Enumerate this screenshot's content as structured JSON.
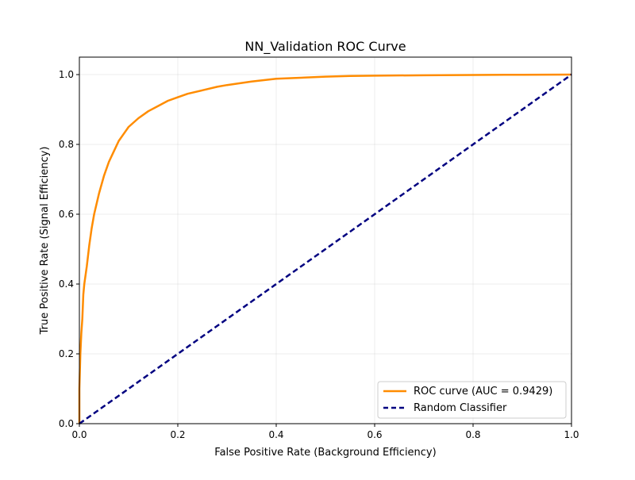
{
  "chart_data": {
    "type": "line",
    "title": "NN_Validation ROC Curve",
    "xlabel": "False Positive Rate (Background Efficiency)",
    "ylabel": "True Positive Rate (Signal Efficiency)",
    "xlim": [
      0.0,
      1.0
    ],
    "ylim": [
      0.0,
      1.05
    ],
    "grid": true,
    "legend_position": "bottom-right",
    "x_ticks": [
      "0.0",
      "0.2",
      "0.4",
      "0.6",
      "0.8",
      "1.0"
    ],
    "y_ticks": [
      "0.0",
      "0.2",
      "0.4",
      "0.6",
      "0.8",
      "1.0"
    ],
    "series": [
      {
        "name": "ROC curve (AUC = 0.9429)",
        "color": "#ff8c00",
        "style": "solid",
        "x": [
          0.0,
          0.0,
          0.002,
          0.004,
          0.006,
          0.008,
          0.01,
          0.015,
          0.02,
          0.025,
          0.03,
          0.04,
          0.05,
          0.06,
          0.07,
          0.08,
          0.09,
          0.1,
          0.12,
          0.14,
          0.16,
          0.18,
          0.2,
          0.22,
          0.25,
          0.28,
          0.3,
          0.35,
          0.4,
          0.45,
          0.5,
          0.55,
          0.6,
          0.7,
          0.8,
          0.9,
          1.0
        ],
        "y": [
          0.0,
          0.1,
          0.2,
          0.26,
          0.3,
          0.37,
          0.4,
          0.45,
          0.51,
          0.56,
          0.6,
          0.66,
          0.71,
          0.75,
          0.78,
          0.81,
          0.83,
          0.85,
          0.875,
          0.895,
          0.91,
          0.925,
          0.935,
          0.945,
          0.955,
          0.965,
          0.97,
          0.98,
          0.988,
          0.991,
          0.994,
          0.996,
          0.997,
          0.998,
          0.999,
          0.9995,
          1.0
        ]
      },
      {
        "name": "Random Classifier",
        "color": "#000080",
        "style": "dashed",
        "x": [
          0.0,
          1.0
        ],
        "y": [
          0.0,
          1.0
        ]
      }
    ]
  }
}
